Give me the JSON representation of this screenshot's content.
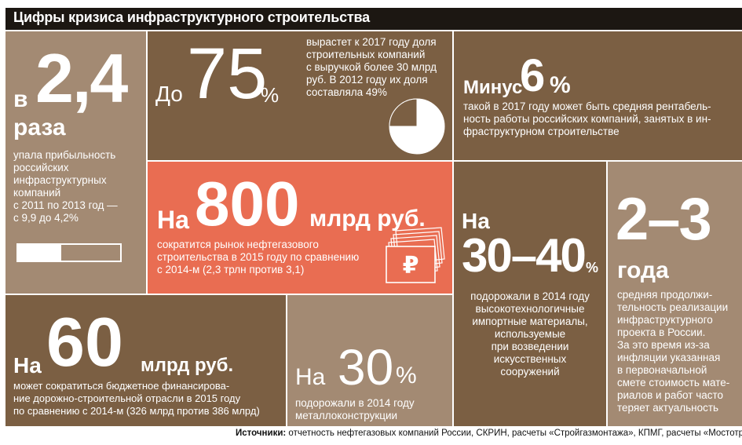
{
  "title": "Цифры кризиса инфраструктурного строительства",
  "tiles": {
    "profit": {
      "prefix": "в",
      "number": "2,4",
      "unit": "раза",
      "lines": [
        "упала прибыльность",
        "российских",
        "инфраструктурных",
        "компаний",
        "с 2011 по 2013 год —",
        "с 9,9 до 4,2%"
      ],
      "bar_fraction": 0.42
    },
    "share": {
      "prefix": "До",
      "number": "75",
      "unit": "%",
      "lines": [
        "вырастет к 2017 году доля",
        "строительных компаний",
        "с выручкой более 30 млрд",
        "руб. В 2012 году их доля",
        "составляла 49%"
      ],
      "pie_fraction": 0.75
    },
    "margin": {
      "prefix": "Минус",
      "number": "6",
      "unit": "%",
      "lines": [
        "такой в 2017 году может быть средняя рентабель-",
        "ность работы российских компаний, занятых в ин-",
        "фраструктурном строительстве"
      ]
    },
    "oilgas": {
      "prefix": "На",
      "number": "800",
      "unit": "млрд руб.",
      "lines": [
        "сократится рынок нефтегазового",
        "строительства в 2015 году по сравнению",
        "с 2014-м (2,3 трлн против 3,1)"
      ],
      "ruble_symbol": "₽"
    },
    "hightech": {
      "prefix": "На",
      "number": "30–40",
      "unit": "%",
      "lines": [
        "подорожали в 2014 году",
        "высокотехнологичные",
        "импортные материалы,",
        "используемые",
        "при возведении",
        "искусственных",
        "сооружений"
      ]
    },
    "duration": {
      "number": "2–3",
      "unit": "года",
      "lines": [
        "средняя продолжи-",
        "тельность реализации",
        "инфраструктурного",
        "проекта в России.",
        "За это время из-за",
        "инфляции указанная",
        "в первоначальной",
        "смете стоимость мате-",
        "риалов и работ часто",
        "теряет актуальность"
      ]
    },
    "roads": {
      "prefix": "На",
      "number": "60",
      "unit": "млрд руб.",
      "lines": [
        "может сократиться бюджетное финансирова-",
        "ние дорожно-строительной отрасли в 2015 году",
        "по сравнению с 2014-м (326 млрд против 386 млрд)"
      ]
    },
    "metal": {
      "prefix": "На",
      "number": "30",
      "unit": "%",
      "lines": [
        "подорожали в 2014 году",
        "металлоконструкции"
      ]
    }
  },
  "sources": {
    "label": "Источники:",
    "text": " отчетность нефтегазовых компаний России, СКРИН, расчеты «Стройгазмонтажа», КПМГ, расчеты «Мостотреста»"
  },
  "colors": {
    "light": "#a38a73",
    "dark": "#7b5f43",
    "red": "#e96d52",
    "title_bg": "#1c1712"
  }
}
